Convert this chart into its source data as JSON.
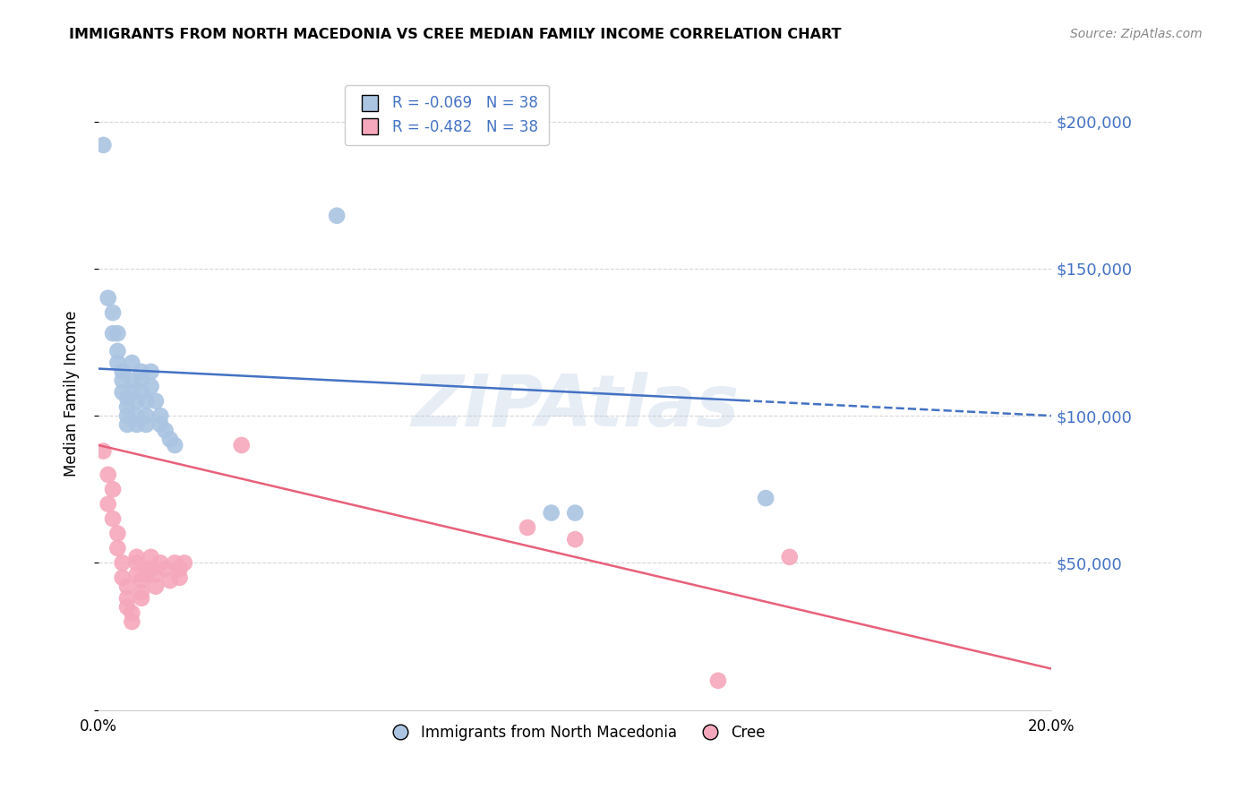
{
  "title": "IMMIGRANTS FROM NORTH MACEDONIA VS CREE MEDIAN FAMILY INCOME CORRELATION CHART",
  "source": "Source: ZipAtlas.com",
  "ylabel": "Median Family Income",
  "y_tick_values": [
    0,
    50000,
    100000,
    150000,
    200000
  ],
  "ylim": [
    0,
    215000
  ],
  "xlim": [
    0.0,
    0.2
  ],
  "blue_r": -0.069,
  "blue_n": 38,
  "pink_r": -0.482,
  "pink_n": 38,
  "blue_color": "#aac4e2",
  "pink_color": "#f5a8bb",
  "blue_line_color": "#4472c4",
  "pink_line_color": "#e8607a",
  "blue_line_solid_end": 0.135,
  "watermark": "ZIPAtlas",
  "legend_label_blue": "Immigrants from North Macedonia",
  "legend_label_pink": "Cree",
  "blue_line_y0": 116000,
  "blue_line_y1": 100000,
  "pink_line_y0": 90000,
  "pink_line_y1": 14000,
  "blue_scatter_x": [
    0.001,
    0.002,
    0.003,
    0.003,
    0.004,
    0.004,
    0.004,
    0.005,
    0.005,
    0.005,
    0.006,
    0.006,
    0.006,
    0.006,
    0.007,
    0.007,
    0.007,
    0.008,
    0.008,
    0.008,
    0.009,
    0.009,
    0.009,
    0.01,
    0.01,
    0.01,
    0.011,
    0.011,
    0.012,
    0.013,
    0.013,
    0.014,
    0.015,
    0.016,
    0.05,
    0.095,
    0.1,
    0.14
  ],
  "blue_scatter_y": [
    192000,
    140000,
    135000,
    128000,
    128000,
    122000,
    118000,
    115000,
    112000,
    108000,
    106000,
    103000,
    100000,
    97000,
    118000,
    112000,
    108000,
    105000,
    100000,
    97000,
    115000,
    112000,
    108000,
    105000,
    100000,
    97000,
    115000,
    110000,
    105000,
    100000,
    97000,
    95000,
    92000,
    90000,
    168000,
    67000,
    67000,
    72000
  ],
  "pink_scatter_x": [
    0.001,
    0.002,
    0.002,
    0.003,
    0.003,
    0.004,
    0.004,
    0.005,
    0.005,
    0.006,
    0.006,
    0.006,
    0.007,
    0.007,
    0.008,
    0.008,
    0.008,
    0.009,
    0.009,
    0.009,
    0.01,
    0.01,
    0.011,
    0.011,
    0.012,
    0.012,
    0.013,
    0.014,
    0.015,
    0.016,
    0.017,
    0.017,
    0.018,
    0.03,
    0.09,
    0.1,
    0.13,
    0.145
  ],
  "pink_scatter_y": [
    88000,
    80000,
    70000,
    75000,
    65000,
    60000,
    55000,
    50000,
    45000,
    42000,
    38000,
    35000,
    33000,
    30000,
    52000,
    50000,
    46000,
    44000,
    40000,
    38000,
    48000,
    46000,
    52000,
    48000,
    46000,
    42000,
    50000,
    48000,
    44000,
    50000,
    48000,
    45000,
    50000,
    90000,
    62000,
    58000,
    10000,
    52000
  ]
}
